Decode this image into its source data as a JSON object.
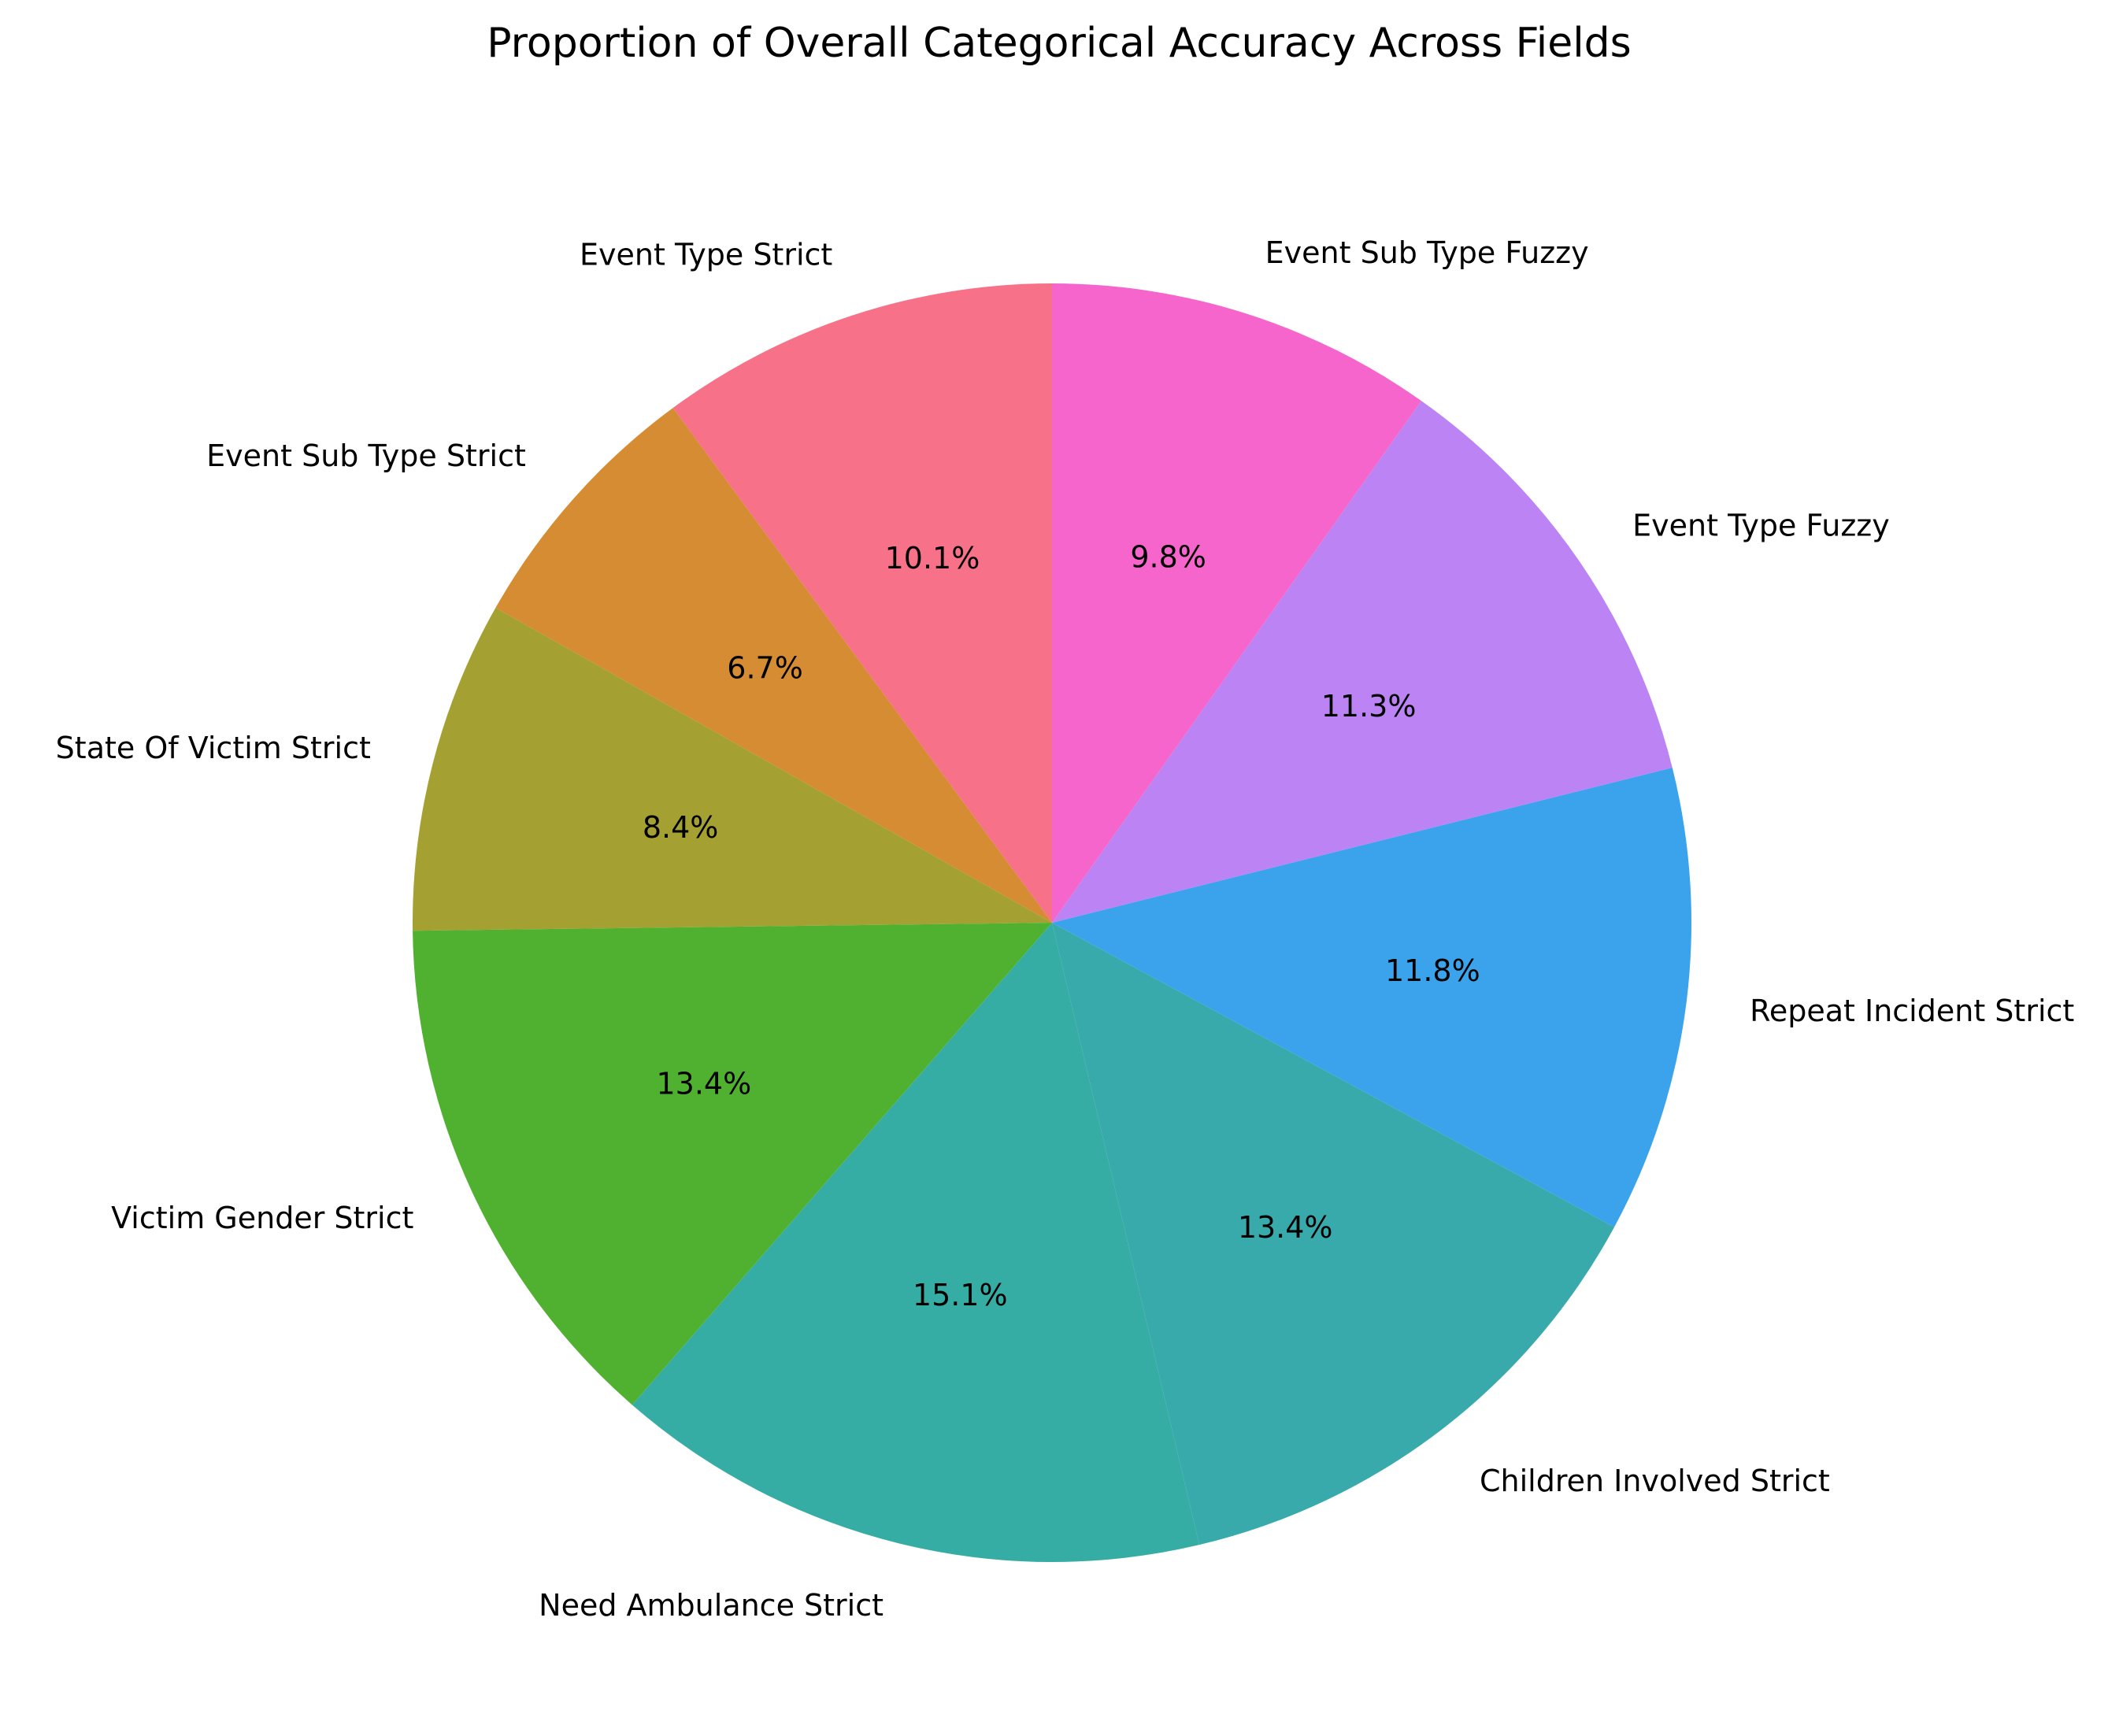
{
  "chart_data": {
    "type": "pie",
    "title": "Proportion of Overall Categorical Accuracy Across Fields",
    "start_angle_deg": 90,
    "direction": "counterclockwise",
    "categories": [
      "Event Type Strict",
      "Event Sub Type Strict",
      "State Of Victim Strict",
      "Victim Gender Strict",
      "Need Ambulance Strict",
      "Children Involved Strict",
      "Repeat Incident Strict",
      "Event Type Fuzzy",
      "Event Sub Type Fuzzy"
    ],
    "values": [
      10.1,
      6.7,
      8.4,
      13.4,
      15.1,
      13.4,
      11.8,
      11.3,
      9.8
    ],
    "value_labels": [
      "10.1%",
      "6.7%",
      "8.4%",
      "13.4%",
      "15.1%",
      "13.4%",
      "11.8%",
      "11.3%",
      "9.8%"
    ],
    "colors": [
      "#f77189",
      "#d58c32",
      "#a4a031",
      "#50b131",
      "#36ada4",
      "#38aaac",
      "#3ba3ec",
      "#bb83f4",
      "#f565cc"
    ]
  }
}
